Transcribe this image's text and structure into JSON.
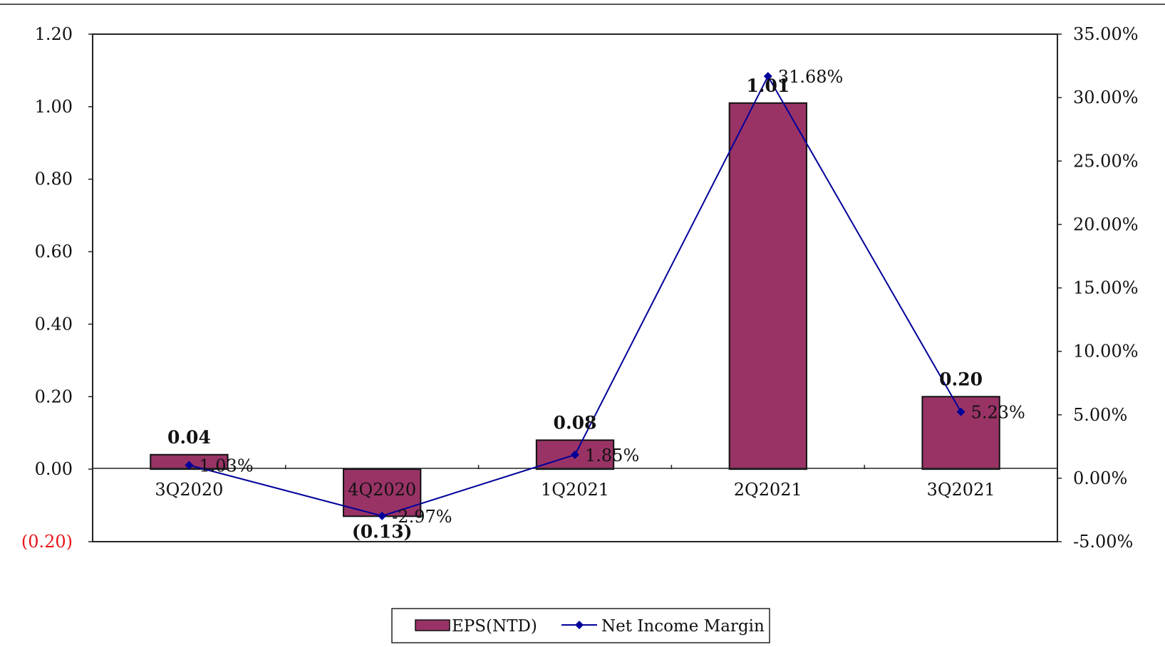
{
  "chart_data": {
    "type": "bar",
    "categories": [
      "3Q2020",
      "4Q2020",
      "1Q2021",
      "2Q2021",
      "3Q2021"
    ],
    "series": [
      {
        "name": "EPS(NTD)",
        "type": "bar",
        "axis": "left",
        "values": [
          0.04,
          -0.13,
          0.08,
          1.01,
          0.2
        ],
        "labels": [
          "0.04",
          "(0.13)",
          "0.08",
          "1.01",
          "0.20"
        ],
        "color": "#993366"
      },
      {
        "name": "Net Income Margin",
        "type": "line",
        "axis": "right",
        "values": [
          1.03,
          -2.97,
          1.85,
          31.68,
          5.23
        ],
        "labels": [
          "1.03%",
          "-2.97%",
          "1.85%",
          "31.68%",
          "5.23%"
        ],
        "color": "#000099"
      }
    ],
    "y_left": {
      "range": [
        -0.2,
        1.2
      ],
      "ticks": [
        1.2,
        1.0,
        0.8,
        0.6,
        0.4,
        0.2,
        0.0,
        -0.2
      ],
      "tick_labels": [
        "1.20",
        "1.00",
        "0.80",
        "0.60",
        "0.40",
        "0.20",
        "0.00",
        "(0.20)"
      ]
    },
    "y_right": {
      "range": [
        -5,
        35
      ],
      "ticks": [
        35,
        30,
        25,
        20,
        15,
        10,
        5,
        0,
        -5
      ],
      "tick_labels": [
        "35.00%",
        "30.00%",
        "25.00%",
        "20.00%",
        "15.00%",
        "10.00%",
        "5.00%",
        "0.00%",
        "-5.00%"
      ]
    },
    "negative_color": "#e8141b",
    "grid": false,
    "legend_position": "bottom-center"
  }
}
